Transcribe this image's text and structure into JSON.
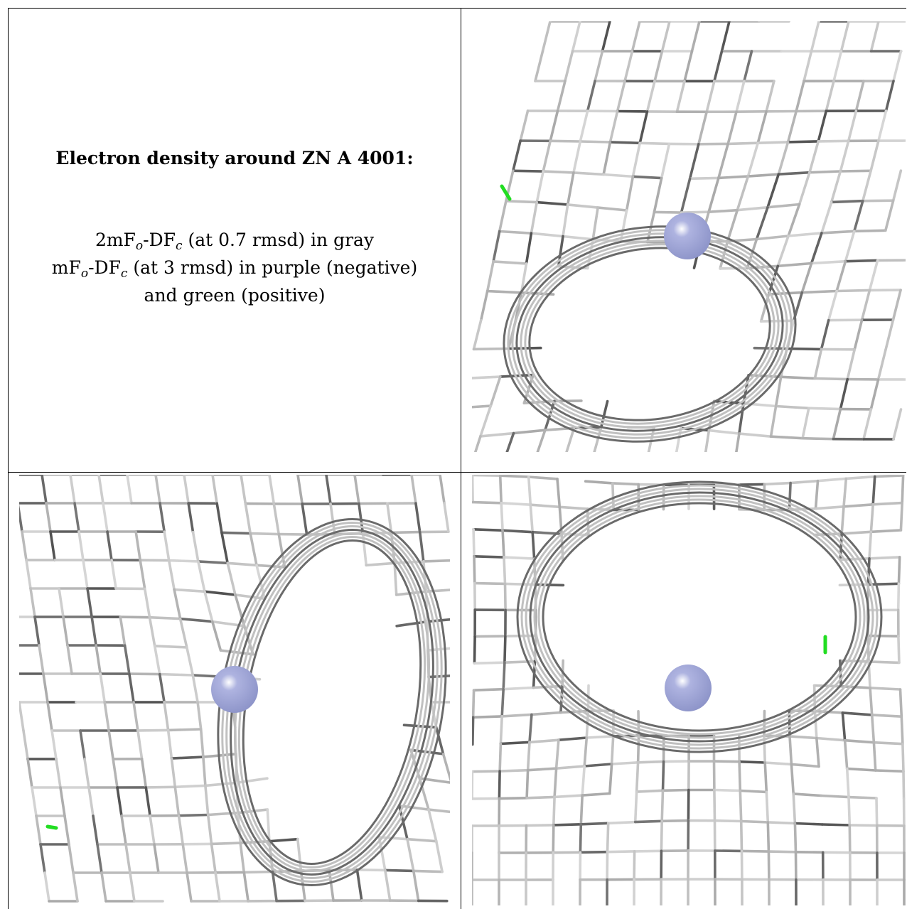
{
  "caption": {
    "title": "Electron density around ZN A 4001:",
    "line1_pre": "2mF",
    "line1_sub1": "o",
    "line1_mid": "-DF",
    "line1_sub2": "c",
    "line1_post": " (at 0.7 rmsd) in gray",
    "line2_pre": "mF",
    "line2_sub1": "o",
    "line2_mid": "-DF",
    "line2_sub2": "c",
    "line2_post": " (at 3 rmsd) in purple (negative)",
    "line3": "and green (positive)"
  },
  "colors": {
    "mesh_gray": "#b4b4b4",
    "mesh_dark": "#5a5a5a",
    "positive_density": "#22dd22",
    "zinc_atom": "#8c93c8"
  },
  "panels": [
    {
      "name": "view-1",
      "atom": "zinc-atom",
      "positive_blob": true
    },
    {
      "name": "view-2",
      "atom": "zinc-atom",
      "positive_blob": true
    },
    {
      "name": "view-3",
      "atom": "zinc-atom",
      "positive_blob": true
    }
  ]
}
